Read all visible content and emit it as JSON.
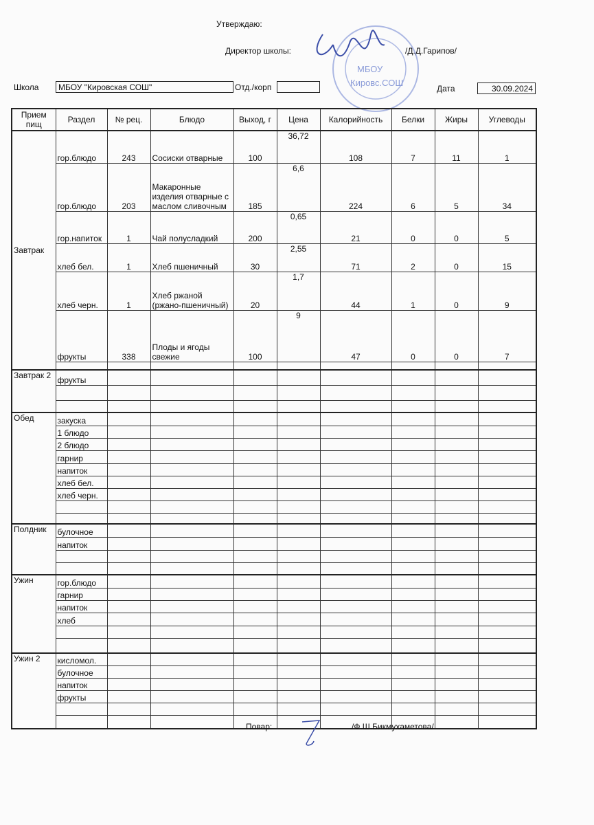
{
  "header": {
    "approve": "Утверждаю:",
    "director_label": "Директор школы:",
    "director_name": "/Д.Д.Гарипов/",
    "school_label": "Школа",
    "school_value": "МБОУ \"Кировская СОШ\"",
    "dept_label": "Отд./корп",
    "dept_value": "",
    "date_label": "Дата",
    "date_value": "30.09.2024",
    "stamp_text": "МБОУ Кировс. СОШ»"
  },
  "columns": [
    "Прием пищ",
    "Раздел",
    "№ рец.",
    "Блюдо",
    "Выход, г",
    "Цена",
    "Калорийность",
    "Белки",
    "Жиры",
    "Углеводы"
  ],
  "breakfast": {
    "meal": "Завтрак",
    "rows": [
      {
        "section": "гор.блюдо",
        "rec": "243",
        "dish": "Сосиски отварные",
        "yield": "100",
        "price": "36,72",
        "kcal": "108",
        "protein": "7",
        "fat": "11",
        "carbs": "1"
      },
      {
        "section": "гор.блюдо",
        "rec": "203",
        "dish": "Макаронные изделия отварные с маслом сливочным",
        "yield": "185",
        "price": "6,6",
        "kcal": "224",
        "protein": "6",
        "fat": "5",
        "carbs": "34"
      },
      {
        "section": "гор.напиток",
        "rec": "1",
        "dish": "Чай полусладкий",
        "yield": "200",
        "price": "0,65",
        "kcal": "21",
        "protein": "0",
        "fat": "0",
        "carbs": "5"
      },
      {
        "section": "хлеб бел.",
        "rec": "1",
        "dish": "Хлеб пшеничный",
        "yield": "30",
        "price": "2,55",
        "kcal": "71",
        "protein": "2",
        "fat": "0",
        "carbs": "15"
      },
      {
        "section": "хлеб черн.",
        "rec": "1",
        "dish": "Хлеб ржаной (ржано-пшеничный)",
        "yield": "20",
        "price": "1,7",
        "kcal": "44",
        "protein": "1",
        "fat": "0",
        "carbs": "9"
      },
      {
        "section": "фрукты",
        "rec": "338",
        "dish": "Плоды и ягоды свежие",
        "yield": "100",
        "price": "9",
        "kcal": "47",
        "protein": "0",
        "fat": "0",
        "carbs": "7"
      }
    ]
  },
  "groups": [
    {
      "meal": "Завтрак 2",
      "sections": [
        "фрукты",
        "",
        ""
      ]
    },
    {
      "meal": "Обед",
      "sections": [
        "закуска",
        "1 блюдо",
        "2 блюдо",
        "гарнир",
        "напиток",
        "хлеб бел.",
        "хлеб черн.",
        "",
        ""
      ]
    },
    {
      "meal": "Полдник",
      "sections": [
        "булочное",
        "напиток",
        "",
        ""
      ]
    },
    {
      "meal": "Ужин",
      "sections": [
        "гор.блюдо",
        "гарнир",
        "напиток",
        "хлеб",
        "",
        ""
      ]
    },
    {
      "meal": "Ужин 2",
      "sections": [
        "кисломол.",
        "булочное",
        "напиток",
        "фрукты",
        "",
        ""
      ]
    }
  ],
  "footer": {
    "cook_label": "Повар:",
    "cook_name": "/Ф.Ш.Бикмухаметова/"
  }
}
